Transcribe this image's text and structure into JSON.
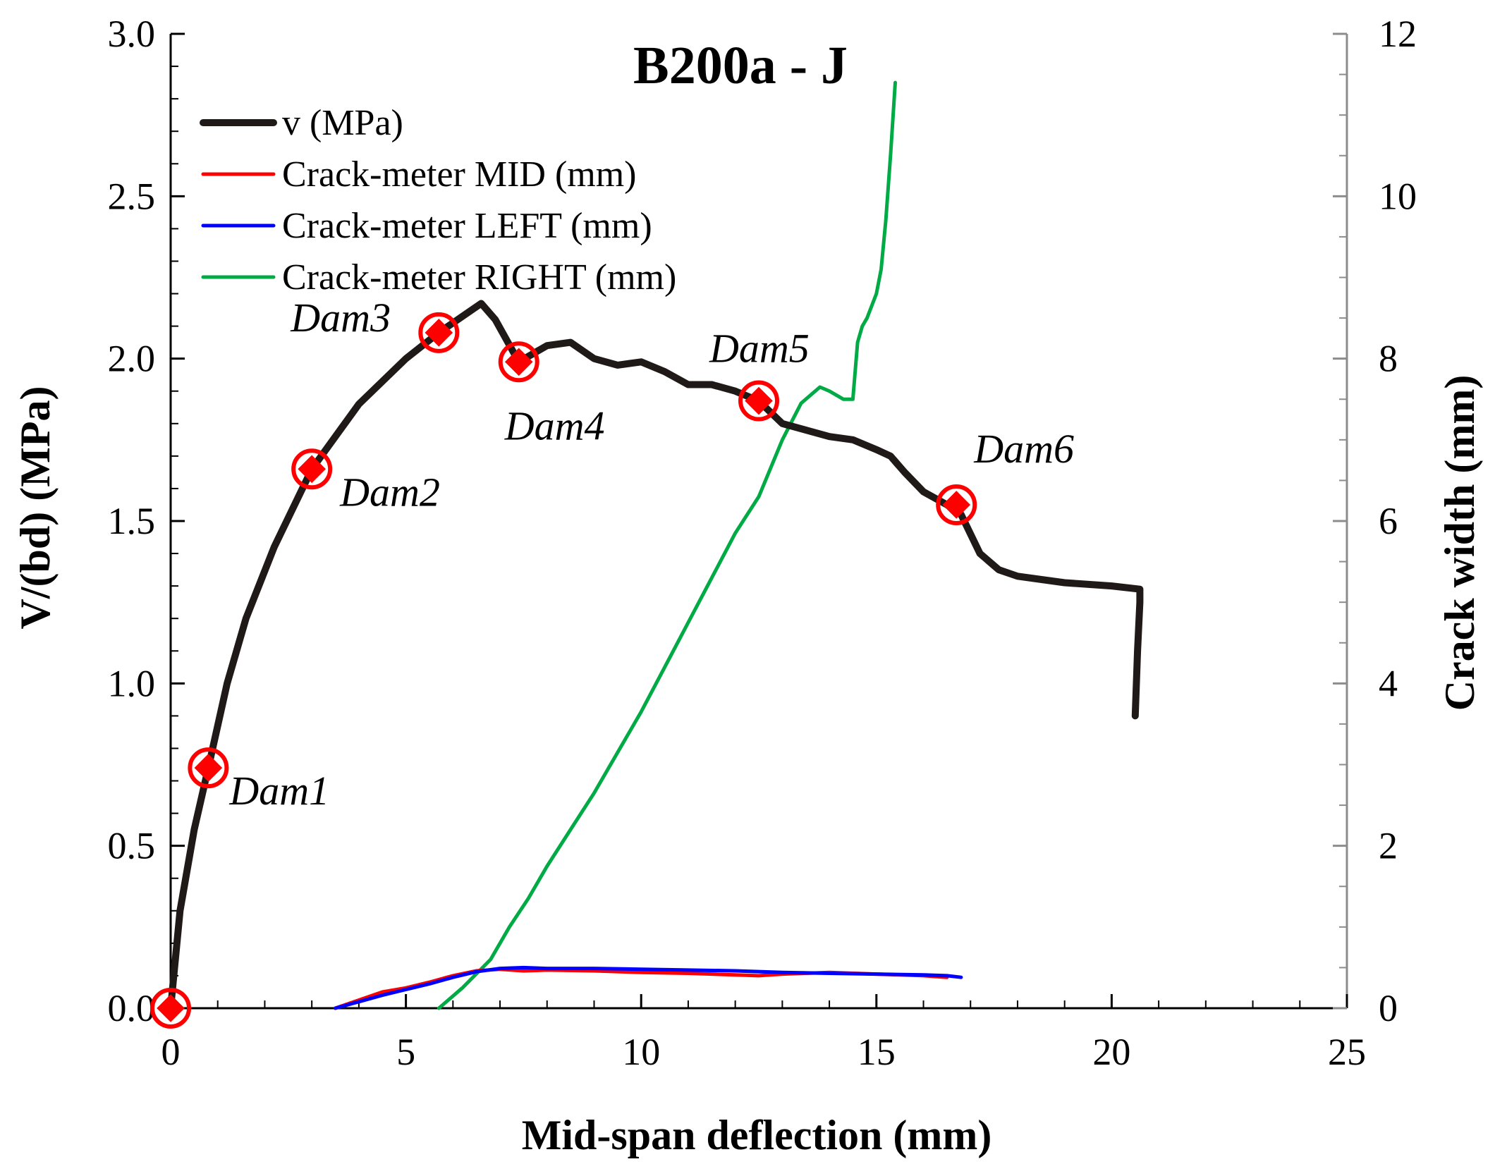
{
  "chart_data": {
    "type": "line",
    "title": "B200a - J",
    "xlabel": "Mid-span deflection (mm)",
    "ylabel": "V/(bd) (MPa)",
    "y2label": "Crack width (mm)",
    "xlim": [
      0,
      25
    ],
    "ylim": [
      0,
      3.0
    ],
    "y2lim": [
      0,
      12
    ],
    "x_ticks": [
      "0",
      "5",
      "10",
      "15",
      "20",
      "25"
    ],
    "y_ticks": [
      "0.0",
      "0.5",
      "1.0",
      "1.5",
      "2.0",
      "2.5",
      "3.0"
    ],
    "y2_ticks": [
      "0",
      "2",
      "4",
      "6",
      "8",
      "10",
      "12"
    ],
    "grid": false,
    "legend_position": "top-left",
    "series": [
      {
        "name": "v (MPa)",
        "axis": "left",
        "color": "#1f1a17",
        "x": [
          0,
          0.2,
          0.5,
          0.8,
          1.2,
          1.6,
          2.2,
          3.0,
          4.0,
          5.0,
          5.7,
          6.2,
          6.6,
          6.9,
          7.4,
          8.0,
          8.5,
          9.0,
          9.5,
          10.0,
          10.5,
          11.0,
          11.5,
          12.0,
          12.5,
          13.0,
          14.0,
          14.5,
          15.0,
          15.3,
          15.6,
          16.0,
          16.5,
          16.8,
          17.2,
          17.6,
          18.0,
          19.0,
          20.0,
          20.6,
          20.6,
          20.55,
          20.5
        ],
        "y": [
          0,
          0.3,
          0.55,
          0.74,
          1.0,
          1.2,
          1.42,
          1.66,
          1.86,
          2.0,
          2.08,
          2.13,
          2.17,
          2.12,
          1.99,
          2.04,
          2.05,
          2.0,
          1.98,
          1.99,
          1.96,
          1.92,
          1.92,
          1.9,
          1.87,
          1.8,
          1.76,
          1.75,
          1.72,
          1.7,
          1.65,
          1.59,
          1.55,
          1.52,
          1.4,
          1.35,
          1.33,
          1.31,
          1.3,
          1.29,
          1.25,
          1.1,
          0.9
        ]
      },
      {
        "name": "Crack-meter MID (mm)",
        "axis": "right",
        "color": "#ff0000",
        "x": [
          3.5,
          4.0,
          4.5,
          5.0,
          5.5,
          6.0,
          6.5,
          7.0,
          7.5,
          8.0,
          9.0,
          10.0,
          11.0,
          12.0,
          12.5,
          13.0,
          14.0,
          15.0,
          16.0,
          16.5
        ],
        "y": [
          0.0,
          0.1,
          0.2,
          0.25,
          0.32,
          0.4,
          0.46,
          0.48,
          0.46,
          0.47,
          0.46,
          0.44,
          0.43,
          0.41,
          0.4,
          0.42,
          0.44,
          0.42,
          0.4,
          0.38
        ]
      },
      {
        "name": "Crack-meter LEFT (mm)",
        "axis": "right",
        "color": "#0000ff",
        "x": [
          3.5,
          4.0,
          4.5,
          5.0,
          5.5,
          6.0,
          6.5,
          7.0,
          7.5,
          8.0,
          9.0,
          10.0,
          11.0,
          12.0,
          13.0,
          14.0,
          15.0,
          16.0,
          16.5,
          16.8
        ],
        "y": [
          0.0,
          0.08,
          0.16,
          0.23,
          0.3,
          0.38,
          0.45,
          0.49,
          0.5,
          0.49,
          0.49,
          0.48,
          0.47,
          0.46,
          0.44,
          0.43,
          0.42,
          0.41,
          0.4,
          0.38
        ]
      },
      {
        "name": "Crack-meter RIGHT (mm)",
        "axis": "right",
        "color": "#00aa44",
        "x": [
          5.7,
          6.2,
          6.8,
          7.2,
          7.6,
          8.0,
          8.5,
          9.0,
          9.5,
          10.0,
          10.5,
          11.0,
          11.5,
          12.0,
          12.5,
          13.0,
          13.4,
          13.8,
          14.0,
          14.3,
          14.5,
          14.6,
          14.7,
          14.8,
          15.0,
          15.1,
          15.2,
          15.3,
          15.4
        ],
        "y": [
          0.0,
          0.25,
          0.6,
          1.0,
          1.35,
          1.75,
          2.2,
          2.65,
          3.15,
          3.65,
          4.2,
          4.75,
          5.3,
          5.85,
          6.3,
          7.0,
          7.45,
          7.65,
          7.6,
          7.5,
          7.5,
          8.2,
          8.4,
          8.5,
          8.8,
          9.1,
          9.7,
          10.5,
          11.4
        ]
      }
    ],
    "markers": [
      {
        "label": "Dam1",
        "x": 0.8,
        "y": 0.74
      },
      {
        "label": "Dam2",
        "x": 3.0,
        "y": 1.66
      },
      {
        "label": "Dam3",
        "x": 5.7,
        "y": 2.08
      },
      {
        "label": "Dam4",
        "x": 7.4,
        "y": 1.99
      },
      {
        "label": "Dam5",
        "x": 12.5,
        "y": 1.87
      },
      {
        "label": "Dam6",
        "x": 16.7,
        "y": 1.55
      },
      {
        "label": "",
        "x": 0,
        "y": 0
      }
    ],
    "marker_color": "#ff0000"
  }
}
